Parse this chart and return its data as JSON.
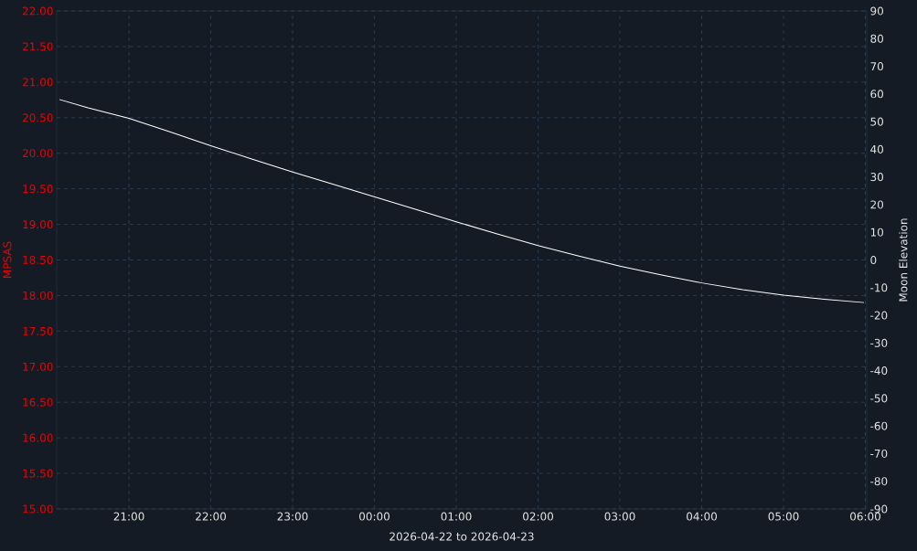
{
  "chart_data": {
    "type": "line",
    "xlabel": "2026-04-22 to 2026-04-23",
    "ylabel": "MPSAS",
    "y2label": "Moon Elevation",
    "xlim": [
      "2026-04-22T20:07",
      "2026-04-23T06:01"
    ],
    "xticks": [
      {
        "value": "2026-04-22T21:00",
        "label": "21:00"
      },
      {
        "value": "2026-04-22T22:00",
        "label": "22:00"
      },
      {
        "value": "2026-04-22T23:00",
        "label": "23:00"
      },
      {
        "value": "2026-04-23T00:00",
        "label": "00:00"
      },
      {
        "value": "2026-04-23T01:00",
        "label": "01:00"
      },
      {
        "value": "2026-04-23T02:00",
        "label": "02:00"
      },
      {
        "value": "2026-04-23T03:00",
        "label": "03:00"
      },
      {
        "value": "2026-04-23T04:00",
        "label": "04:00"
      },
      {
        "value": "2026-04-23T05:00",
        "label": "05:00"
      },
      {
        "value": "2026-04-23T06:00",
        "label": "06:00"
      }
    ],
    "ylim": [
      15,
      22
    ],
    "yticks": [
      {
        "value": 15,
        "label": "15.00"
      },
      {
        "value": 15.5,
        "label": "15.50"
      },
      {
        "value": 16,
        "label": "16.00"
      },
      {
        "value": 16.5,
        "label": "16.50"
      },
      {
        "value": 17,
        "label": "17.00"
      },
      {
        "value": 17.5,
        "label": "17.50"
      },
      {
        "value": 18,
        "label": "18.00"
      },
      {
        "value": 18.5,
        "label": "18.50"
      },
      {
        "value": 19,
        "label": "19.00"
      },
      {
        "value": 19.5,
        "label": "19.50"
      },
      {
        "value": 20,
        "label": "20.00"
      },
      {
        "value": 20.5,
        "label": "20.50"
      },
      {
        "value": 21,
        "label": "21.00"
      },
      {
        "value": 21.5,
        "label": "21.50"
      },
      {
        "value": 22,
        "label": "22.00"
      }
    ],
    "y2lim": [
      -90,
      90
    ],
    "y2ticks": [
      -90,
      -80,
      -70,
      -60,
      -50,
      -40,
      -30,
      -20,
      -10,
      0,
      10,
      20,
      30,
      40,
      50,
      60,
      70,
      80,
      90
    ],
    "grid": true,
    "series": [
      {
        "color": "#ffffff",
        "axis": "y2",
        "x": [
          "2026-04-22T20:09",
          "2026-04-22T20:30",
          "2026-04-22T21:00",
          "2026-04-22T21:30",
          "2026-04-22T22:00",
          "2026-04-22T22:30",
          "2026-04-22T23:00",
          "2026-04-22T23:30",
          "2026-04-23T00:00",
          "2026-04-23T00:30",
          "2026-04-23T01:00",
          "2026-04-23T01:30",
          "2026-04-23T02:00",
          "2026-04-23T02:30",
          "2026-04-23T03:00",
          "2026-04-23T03:30",
          "2026-04-23T04:00",
          "2026-04-23T04:30",
          "2026-04-23T05:00",
          "2026-04-23T05:30",
          "2026-04-23T05:59"
        ],
        "values": [
          58.0,
          55.0,
          51.2,
          46.3,
          41.3,
          36.5,
          31.8,
          27.3,
          22.8,
          18.3,
          13.8,
          9.4,
          5.2,
          1.4,
          -2.2,
          -5.4,
          -8.3,
          -10.7,
          -12.7,
          -14.2,
          -15.4
        ]
      }
    ]
  }
}
